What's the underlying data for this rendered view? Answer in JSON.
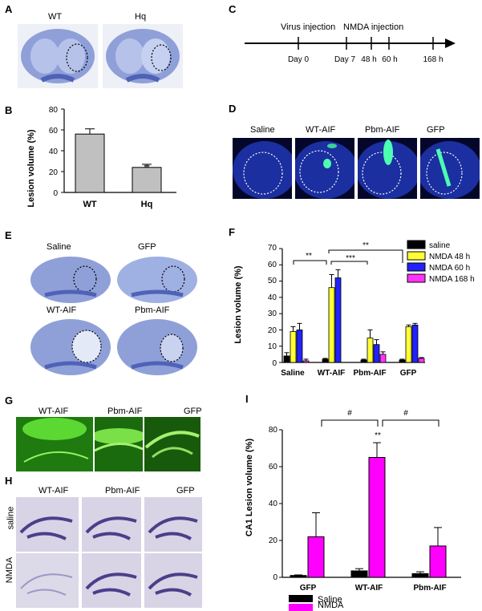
{
  "panels": {
    "A": {
      "label": "A",
      "image_labels": [
        "WT",
        "Hq"
      ]
    },
    "B": {
      "label": "B",
      "chart_data": {
        "type": "bar",
        "categories": [
          "WT",
          "Hq"
        ],
        "values": [
          56,
          24
        ],
        "errors": [
          5,
          3
        ],
        "ylabel": "Lesion volume (%)",
        "xlabel": "",
        "ylim": [
          0,
          80
        ],
        "yticks": [
          "0",
          "20",
          "40",
          "60",
          "80"
        ],
        "significance": "**",
        "bar_color": "#c0c0c0"
      }
    },
    "C": {
      "label": "C",
      "events": [
        "Virus injection",
        "NMDA injection"
      ],
      "ticks": [
        "Day 0",
        "Day 7",
        "48 h",
        "60 h",
        "168 h"
      ]
    },
    "D": {
      "label": "D",
      "image_labels": [
        "Saline",
        "WT-AIF",
        "Pbm-AIF",
        "GFP"
      ]
    },
    "E": {
      "label": "E",
      "image_labels": [
        "Saline",
        "GFP",
        "WT-AIF",
        "Pbm-AIF"
      ]
    },
    "F": {
      "label": "F",
      "chart_data": {
        "type": "bar",
        "categories": [
          "Saline",
          "WT-AIF",
          "Pbm-AIF",
          "GFP"
        ],
        "series": [
          {
            "name": "saline",
            "color": "#000000",
            "values": [
              4,
              2,
              1.5,
              1.5
            ],
            "errors": [
              2,
              0.5,
              0.5,
              0.5
            ]
          },
          {
            "name": "NMDA 48 h",
            "color": "#ffff33",
            "values": [
              19,
              46,
              15,
              22
            ],
            "errors": [
              3,
              8,
              5,
              1
            ]
          },
          {
            "name": "NMDA 60 h",
            "color": "#2222ff",
            "values": [
              20,
              52,
              11,
              23
            ],
            "errors": [
              4,
              5,
              3,
              1
            ]
          },
          {
            "name": "NMDA 168 h",
            "color": "#ff33ff",
            "values": [
              1,
              null,
              5,
              2.5
            ],
            "errors": [
              1,
              null,
              1.5,
              0.5
            ]
          }
        ],
        "ylabel": "Lesion volume (%)",
        "xlabel": "",
        "ylim": [
          0,
          70
        ],
        "yticks": [
          "0",
          "10",
          "20",
          "30",
          "40",
          "50",
          "60",
          "70"
        ],
        "significance": [
          "**",
          "***",
          "**"
        ]
      }
    },
    "G": {
      "label": "G",
      "image_labels": [
        "WT-AIF",
        "Pbm-AIF",
        "GFP"
      ]
    },
    "H": {
      "label": "H",
      "image_labels": [
        "WT-AIF",
        "Pbm-AIF",
        "GFP"
      ],
      "row_labels": [
        "saline",
        "NMDA"
      ]
    },
    "I": {
      "label": "I",
      "chart_data": {
        "type": "bar",
        "categories": [
          "GFP",
          "WT-AIF",
          "Pbm-AIF"
        ],
        "series": [
          {
            "name": "Saline",
            "color": "#000000",
            "values": [
              1,
              3.5,
              2
            ],
            "errors": [
              0.3,
              1.2,
              1
            ]
          },
          {
            "name": "NMDA",
            "color": "#ff00ff",
            "values": [
              22,
              65,
              17
            ],
            "errors": [
              13,
              8,
              10
            ]
          }
        ],
        "ylabel": "CA1 Lesion volume (%)",
        "xlabel": "",
        "ylim": [
          0,
          80
        ],
        "yticks": [
          "0",
          "20",
          "40",
          "60",
          "80"
        ],
        "significance": [
          "#",
          "#",
          "**"
        ]
      }
    }
  }
}
